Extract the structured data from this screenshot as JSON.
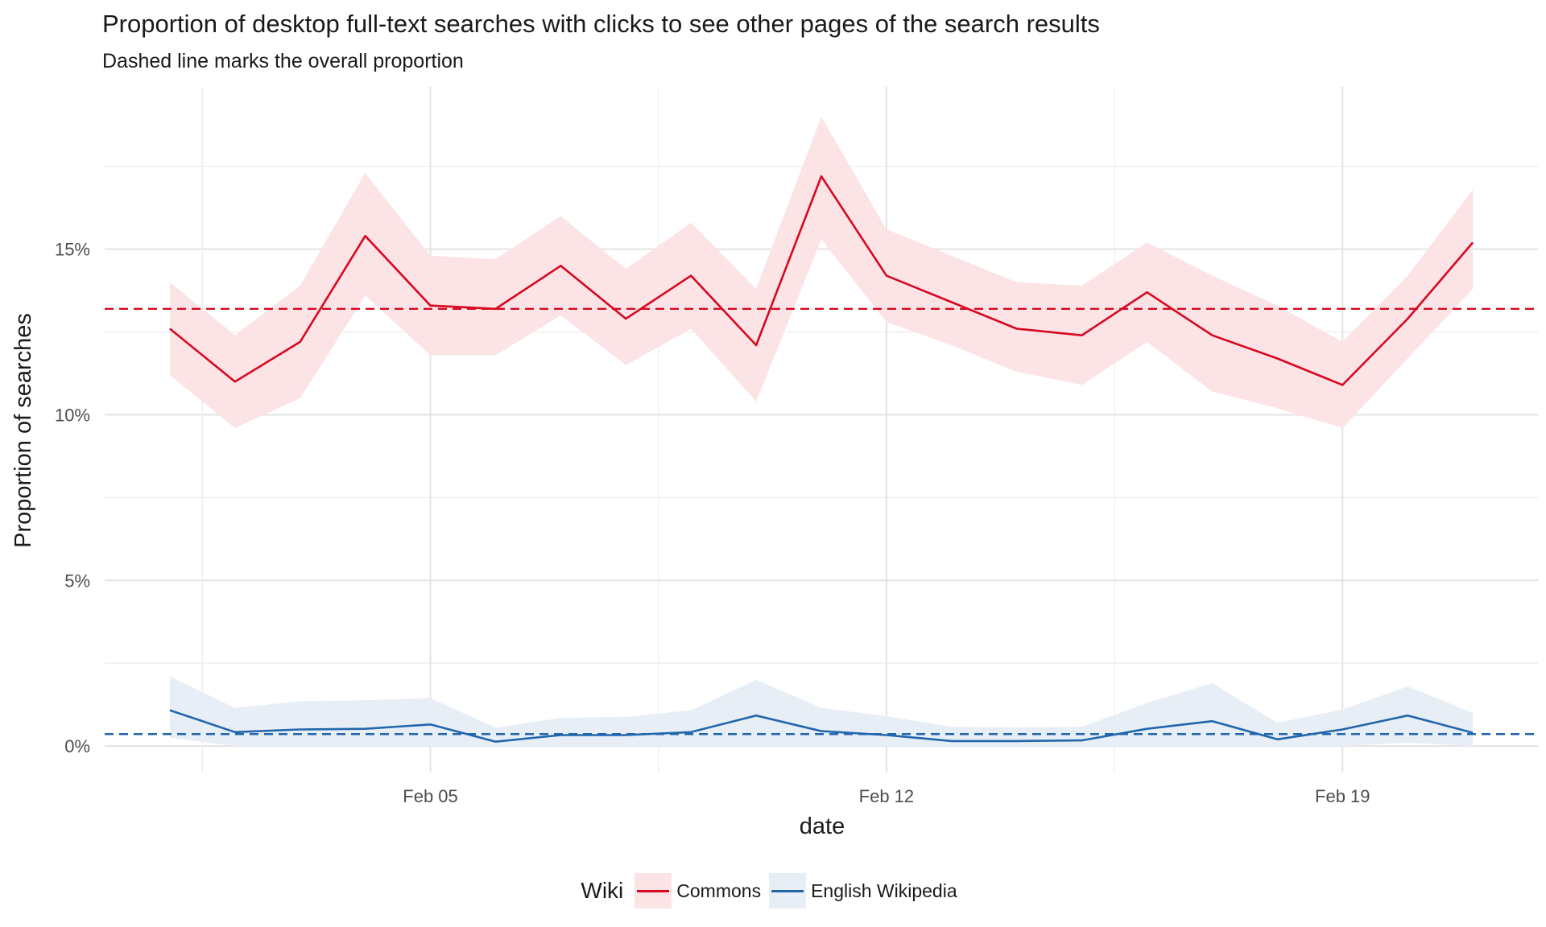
{
  "chart_data": {
    "type": "line",
    "title": "Proportion of desktop full-text searches with clicks to see other pages of the search results",
    "subtitle": "Dashed line marks the overall proportion",
    "xlabel": "date",
    "ylabel": "Proportion of searches",
    "x": [
      "2017-02-01",
      "2017-02-02",
      "2017-02-03",
      "2017-02-04",
      "2017-02-05",
      "2017-02-06",
      "2017-02-07",
      "2017-02-08",
      "2017-02-09",
      "2017-02-10",
      "2017-02-11",
      "2017-02-12",
      "2017-02-13",
      "2017-02-14",
      "2017-02-15",
      "2017-02-16",
      "2017-02-17",
      "2017-02-18",
      "2017-02-19",
      "2017-02-20",
      "2017-02-21"
    ],
    "x_ticks": [
      "Feb 05",
      "Feb 12",
      "Feb 19"
    ],
    "y_ticks": [
      "0%",
      "5%",
      "10%",
      "15%"
    ],
    "ylim": [
      -0.008,
      0.199
    ],
    "grid": true,
    "legend": {
      "title": "Wiki",
      "position": "bottom"
    },
    "series": [
      {
        "name": "Commons",
        "color": "#d7081f",
        "band_color": "#fbe3e6",
        "overall": 0.132,
        "values": [
          0.126,
          0.11,
          0.122,
          0.154,
          0.133,
          0.132,
          0.145,
          0.129,
          0.142,
          0.121,
          0.172,
          0.142,
          0.134,
          0.126,
          0.124,
          0.137,
          0.124,
          0.117,
          0.109,
          0.129,
          0.152
        ],
        "lower": [
          0.112,
          0.096,
          0.105,
          0.136,
          0.118,
          0.118,
          0.13,
          0.115,
          0.126,
          0.104,
          0.153,
          0.128,
          0.121,
          0.113,
          0.109,
          0.122,
          0.107,
          0.102,
          0.096,
          0.117,
          0.138
        ],
        "upper": [
          0.14,
          0.124,
          0.139,
          0.173,
          0.148,
          0.147,
          0.16,
          0.144,
          0.158,
          0.138,
          0.19,
          0.156,
          0.148,
          0.14,
          0.139,
          0.152,
          0.142,
          0.133,
          0.122,
          0.142,
          0.168
        ]
      },
      {
        "name": "English Wikipedia",
        "color": "#2166ac",
        "band_color": "#e8eef6",
        "overall": 0.0036,
        "values": [
          0.0108,
          0.0042,
          0.005,
          0.0052,
          0.0065,
          0.0013,
          0.0033,
          0.0033,
          0.0042,
          0.0092,
          0.0045,
          0.0033,
          0.0015,
          0.0015,
          0.0017,
          0.0052,
          0.0075,
          0.002,
          0.005,
          0.0092,
          0.004
        ],
        "lower": [
          0.0025,
          0.0,
          0.0,
          0.0,
          0.0,
          0.0,
          0.0,
          0.0,
          0.0,
          0.0,
          0.0,
          0.0,
          0.0,
          0.0,
          0.0,
          0.0,
          0.0,
          0.0,
          0.0,
          0.001,
          0.0
        ],
        "upper": [
          0.021,
          0.0115,
          0.0135,
          0.0138,
          0.0145,
          0.0055,
          0.0085,
          0.0088,
          0.0108,
          0.02,
          0.0115,
          0.009,
          0.0058,
          0.0056,
          0.0058,
          0.013,
          0.019,
          0.007,
          0.011,
          0.018,
          0.01
        ]
      }
    ]
  }
}
